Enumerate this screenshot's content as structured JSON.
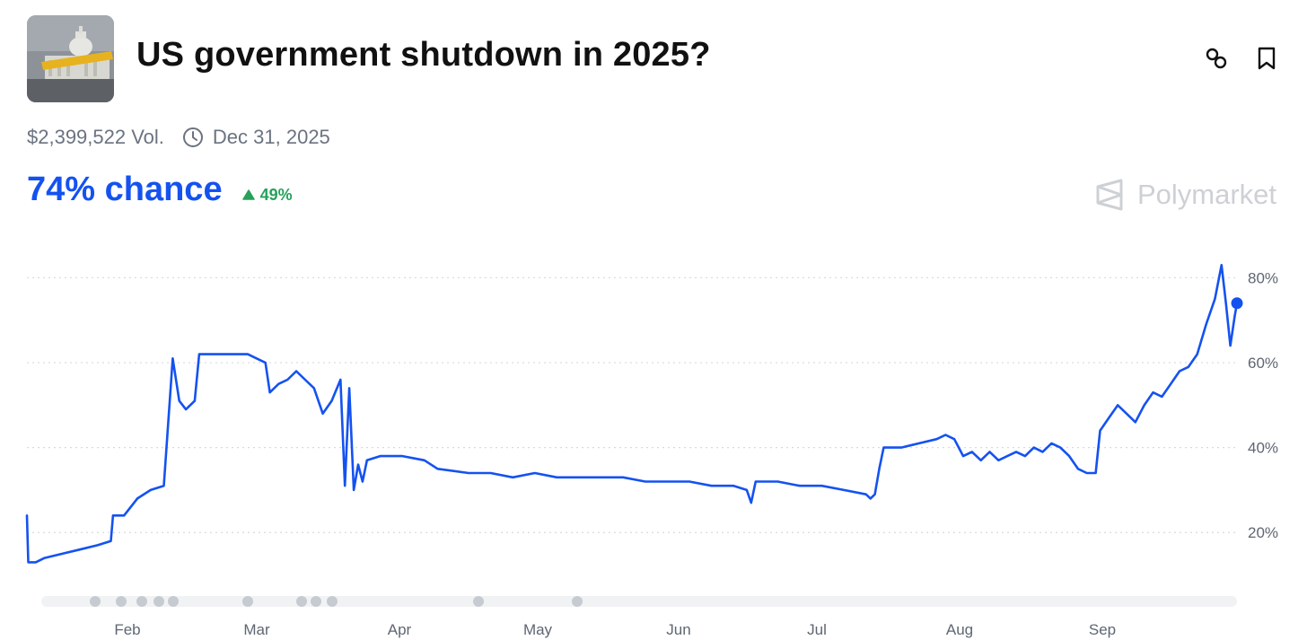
{
  "market": {
    "title": "US government shutdown in 2025?",
    "volume": "$2,399,522 Vol.",
    "end_date": "Dec 31, 2025",
    "chance": "74% chance",
    "change": "49%",
    "brand": "Polymarket"
  },
  "icons": {
    "thumbnail": "capitol-shutdown-thumbnail",
    "link": "link-icon",
    "bookmark": "bookmark-icon",
    "clock": "clock-icon",
    "up": "triangle-up-icon",
    "logo": "polymarket-logo-icon"
  },
  "colors": {
    "line": "#1452f0",
    "up": "#27a15a",
    "muted": "#6b7380"
  },
  "chart_data": {
    "type": "line",
    "x_axis": [
      "Feb",
      "Mar",
      "Apr",
      "May",
      "Jun",
      "Jul",
      "Aug",
      "Sep"
    ],
    "y_ticks": [
      "80%",
      "60%",
      "40%",
      "20%"
    ],
    "ylim": [
      8,
      82
    ],
    "series": [
      {
        "values": [
          [
            0,
            24
          ],
          [
            0.3,
            13
          ],
          [
            2,
            13
          ],
          [
            4,
            14
          ],
          [
            8,
            15
          ],
          [
            12,
            16
          ],
          [
            16,
            17
          ],
          [
            19,
            18
          ],
          [
            19.5,
            24
          ],
          [
            22,
            24
          ],
          [
            25,
            28
          ],
          [
            28,
            30
          ],
          [
            31,
            31
          ],
          [
            33,
            61
          ],
          [
            34.5,
            51
          ],
          [
            36,
            49
          ],
          [
            38,
            51
          ],
          [
            39,
            62
          ],
          [
            42,
            62
          ],
          [
            45,
            62
          ],
          [
            48,
            62
          ],
          [
            50,
            62
          ],
          [
            52,
            61
          ],
          [
            54,
            60
          ],
          [
            55,
            53
          ],
          [
            57,
            55
          ],
          [
            59,
            56
          ],
          [
            61,
            58
          ],
          [
            63,
            56
          ],
          [
            65,
            54
          ],
          [
            67,
            48
          ],
          [
            69,
            51
          ],
          [
            71,
            56
          ],
          [
            72,
            31
          ],
          [
            73,
            54
          ],
          [
            74,
            30
          ],
          [
            75,
            36
          ],
          [
            76,
            32
          ],
          [
            77,
            37
          ],
          [
            80,
            38
          ],
          [
            85,
            38
          ],
          [
            90,
            37
          ],
          [
            93,
            35
          ],
          [
            100,
            34
          ],
          [
            105,
            34
          ],
          [
            110,
            33
          ],
          [
            115,
            34
          ],
          [
            120,
            33
          ],
          [
            125,
            33
          ],
          [
            130,
            33
          ],
          [
            135,
            33
          ],
          [
            140,
            32
          ],
          [
            145,
            32
          ],
          [
            150,
            32
          ],
          [
            155,
            31
          ],
          [
            160,
            31
          ],
          [
            163,
            30
          ],
          [
            164,
            27
          ],
          [
            165,
            32
          ],
          [
            170,
            32
          ],
          [
            175,
            31
          ],
          [
            180,
            31
          ],
          [
            185,
            30
          ],
          [
            190,
            29
          ],
          [
            191,
            28
          ],
          [
            192,
            29
          ],
          [
            193,
            35
          ],
          [
            194,
            40
          ],
          [
            198,
            40
          ],
          [
            202,
            41
          ],
          [
            206,
            42
          ],
          [
            208,
            43
          ],
          [
            210,
            42
          ],
          [
            212,
            38
          ],
          [
            214,
            39
          ],
          [
            216,
            37
          ],
          [
            218,
            39
          ],
          [
            220,
            37
          ],
          [
            222,
            38
          ],
          [
            224,
            39
          ],
          [
            226,
            38
          ],
          [
            228,
            40
          ],
          [
            230,
            39
          ],
          [
            232,
            41
          ],
          [
            234,
            40
          ],
          [
            236,
            38
          ],
          [
            238,
            35
          ],
          [
            240,
            34
          ],
          [
            242,
            34
          ],
          [
            243,
            44
          ],
          [
            245,
            47
          ],
          [
            247,
            50
          ],
          [
            249,
            48
          ],
          [
            251,
            46
          ],
          [
            253,
            50
          ],
          [
            255,
            53
          ],
          [
            257,
            52
          ],
          [
            259,
            55
          ],
          [
            261,
            58
          ],
          [
            263,
            59
          ],
          [
            265,
            62
          ],
          [
            267,
            69
          ],
          [
            269,
            75
          ],
          [
            270.5,
            83
          ],
          [
            271.5,
            74
          ],
          [
            272.5,
            64
          ],
          [
            273.5,
            71
          ],
          [
            274,
            74
          ]
        ]
      }
    ],
    "grid": true,
    "markers_row": true
  }
}
